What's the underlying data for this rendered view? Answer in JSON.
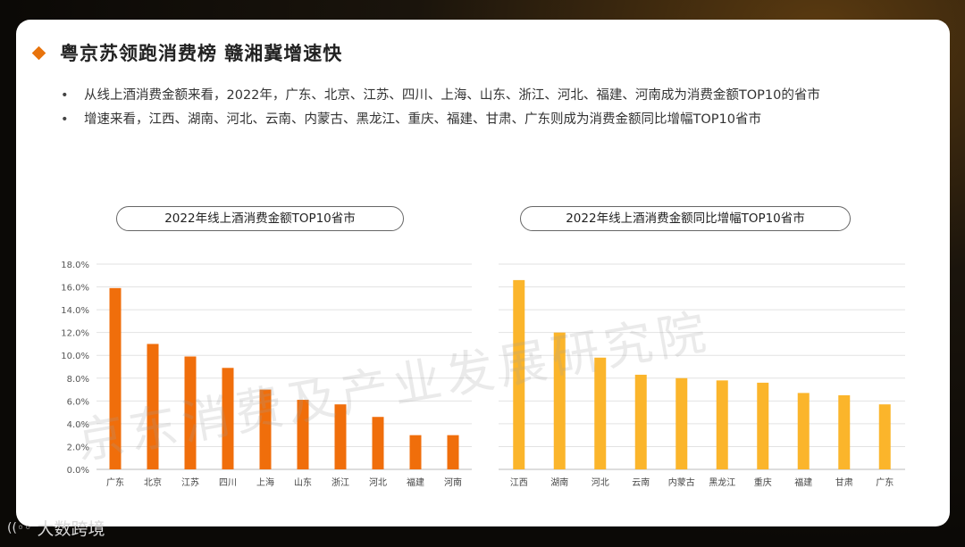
{
  "slide": {
    "title": "粤京苏领跑消费榜 赣湘冀增速快",
    "bullets": [
      "从线上酒消费金额来看，2022年，广东、北京、江苏、四川、上海、山东、浙江、河北、福建、河南成为消费金额TOP10的省市",
      "增速来看，江西、湖南、河北、云南、内蒙古、黑龙江、重庆、福建、甘肃、广东则成为消费金额同比增幅TOP10省市"
    ],
    "watermark": "京东消费及产业发展研究院",
    "logo_text": "大数跨境",
    "logo_mark": "((◦◦"
  },
  "chart_data": [
    {
      "type": "bar",
      "title": "2022年线上酒消费金额TOP10省市",
      "categories": [
        "广东",
        "北京",
        "江苏",
        "四川",
        "上海",
        "山东",
        "浙江",
        "河北",
        "福建",
        "河南"
      ],
      "values": [
        15.9,
        11.0,
        9.9,
        8.9,
        7.0,
        6.1,
        5.7,
        4.6,
        3.0,
        3.0
      ],
      "ylim": [
        0,
        18
      ],
      "yticks": [
        "0.0%",
        "2.0%",
        "4.0%",
        "6.0%",
        "8.0%",
        "10.0%",
        "12.0%",
        "14.0%",
        "16.0%",
        "18.0%"
      ],
      "color": "#f06e0b",
      "grid": true
    },
    {
      "type": "bar",
      "title": "2022年线上酒消费金额同比增幅TOP10省市",
      "categories": [
        "江西",
        "湖南",
        "河北",
        "云南",
        "内蒙古",
        "黑龙江",
        "重庆",
        "福建",
        "甘肃",
        "广东"
      ],
      "values": [
        16.6,
        12.0,
        9.8,
        8.3,
        8.0,
        7.8,
        7.6,
        6.7,
        6.5,
        5.7
      ],
      "ylim": [
        0,
        18
      ],
      "color": "#fbb52b",
      "grid": true
    }
  ]
}
